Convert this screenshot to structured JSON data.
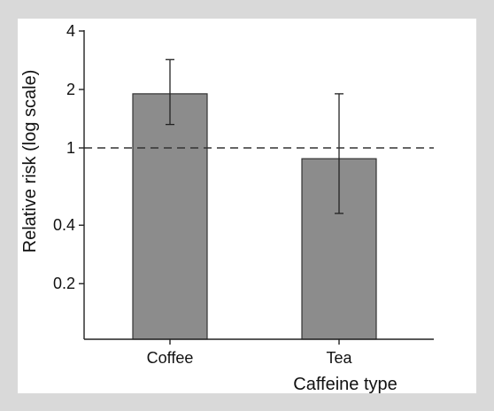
{
  "chart_data": {
    "type": "bar",
    "categories": [
      "Coffee",
      "Tea"
    ],
    "values": [
      1.9,
      0.88
    ],
    "error_bars": [
      {
        "low": 1.32,
        "high": 2.85
      },
      {
        "low": 0.46,
        "high": 1.9
      }
    ],
    "xlabel": "Caffeine type",
    "ylabel": "Relative risk (log scale)",
    "y_scale": "log",
    "ylim": [
      0.1,
      4
    ],
    "y_ticks": [
      0.2,
      0.4,
      1,
      2,
      4
    ],
    "y_tick_labels": [
      "0.2",
      "0.4",
      "1",
      "2",
      "4"
    ],
    "reference_line": 1,
    "grid": false,
    "colors": {
      "bar": "#8c8c8c",
      "bar_edge": "#333333",
      "axis": "#222222",
      "background": "#d9d9d9",
      "panel": "#ffffff"
    }
  }
}
